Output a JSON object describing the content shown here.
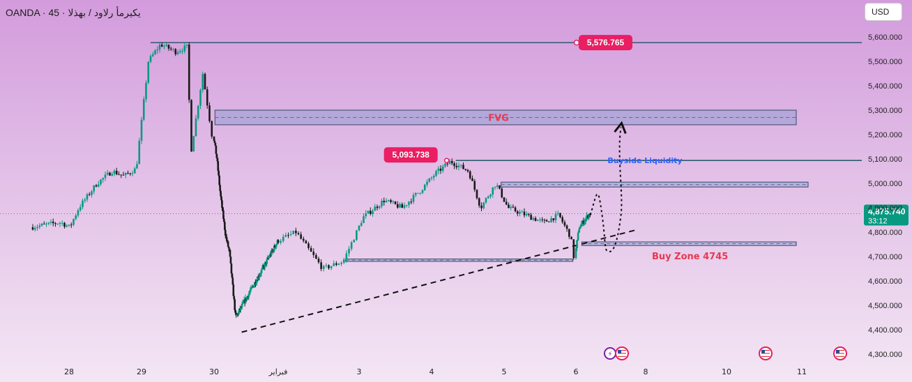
{
  "symbol_title": "OANDA · 45 · يكيرمأ رلاود / بهذلا",
  "currency": "USD",
  "chart_data": {
    "type": "candlestick",
    "timeframe_minutes": 45,
    "y_ticks": [
      4300000,
      4400000,
      4500000,
      4600000,
      4700000,
      4800000,
      4900000,
      5000000,
      5100000,
      5200000,
      5300000,
      5400000,
      5500000,
      5600000
    ],
    "y_tick_labels": [
      "4,300.000",
      "4,400.000",
      "4,500.000",
      "4,600.000",
      "4,700.000",
      "4,800.000",
      "4,900.000",
      "5,000.000",
      "5,100.000",
      "5,200.000",
      "5,300.000",
      "5,400.000",
      "5,500.000",
      "5,600.000"
    ],
    "x_tick_labels": [
      "28",
      "29",
      "30",
      "فبراير",
      "3",
      "4",
      "5",
      "6",
      "8",
      "10",
      "11"
    ],
    "colors": {
      "up": "#089981",
      "down": "#1a1a1a",
      "annotation": "#2d5b6e",
      "label_bg": "#e91e63",
      "accent_text": "#e53950",
      "liquidity_text": "#2962ff"
    },
    "price_path": [
      {
        "time": "Jan 27 12:00",
        "price": 4820
      },
      {
        "time": "Jan 27 22:00",
        "price": 4840
      },
      {
        "time": "Jan 28 01:00",
        "price": 4820
      },
      {
        "time": "Jan 28 04:00",
        "price": 4900
      },
      {
        "time": "Jan 28 10:00",
        "price": 5000
      },
      {
        "time": "Jan 28 15:00",
        "price": 5050
      },
      {
        "time": "Jan 28 19:00",
        "price": 5030
      },
      {
        "time": "Jan 28 23:00",
        "price": 5060
      },
      {
        "time": "Jan 29 03:00",
        "price": 5500
      },
      {
        "time": "Jan 29 07:00",
        "price": 5570
      },
      {
        "time": "Jan 29 12:00",
        "price": 5540
      },
      {
        "time": "Jan 29 16:00",
        "price": 5560
      },
      {
        "time": "Jan 29 17:00",
        "price": 5120
      },
      {
        "time": "Jan 29 21:00",
        "price": 5450
      },
      {
        "time": "Jan 30 00:00",
        "price": 5200
      },
      {
        "time": "Jan 30 04:00",
        "price": 5100
      },
      {
        "time": "Jan 30 08:00",
        "price": 4950
      },
      {
        "time": "Jan 30 14:00",
        "price": 4780
      },
      {
        "time": "Jan 30 18:00",
        "price": 4720
      },
      {
        "time": "Jan 31 01:00",
        "price": 4450
      },
      {
        "time": "Feb 2 06:00",
        "price": 4800
      },
      {
        "time": "Feb 2 14:00",
        "price": 4650
      },
      {
        "time": "Feb 2 20:00",
        "price": 4680
      },
      {
        "time": "Feb 3 02:00",
        "price": 4860
      },
      {
        "time": "Feb 3 09:00",
        "price": 4930
      },
      {
        "time": "Feb 3 15:00",
        "price": 4900
      },
      {
        "time": "Feb 3 21:00",
        "price": 4970
      },
      {
        "time": "Feb 4 02:00",
        "price": 5040
      },
      {
        "time": "Feb 4 07:00",
        "price": 5090
      },
      {
        "time": "Feb 4 13:00",
        "price": 5050
      },
      {
        "time": "Feb 4 17:00",
        "price": 4900
      },
      {
        "time": "Feb 4 22:00",
        "price": 5000
      },
      {
        "time": "Feb 5 02:00",
        "price": 4900
      },
      {
        "time": "Feb 5 08:00",
        "price": 4870
      },
      {
        "time": "Feb 5 14:00",
        "price": 4840
      },
      {
        "time": "Feb 5 19:00",
        "price": 4870
      },
      {
        "time": "Feb 5 23:00",
        "price": 4780
      },
      {
        "time": "Feb 6 00:00",
        "price": 4700
      },
      {
        "time": "Feb 6 03:00",
        "price": 4820
      },
      {
        "time": "Feb 6 10:00",
        "price": 4875.74
      }
    ],
    "last_price": "4,875.740",
    "countdown": "33:12",
    "levels": [
      {
        "name": "high",
        "price": 5576.765,
        "label": "5,576.765"
      },
      {
        "name": "buyside-liquidity",
        "price": 5093.738,
        "label": "5,093.738",
        "text": "Buyside Liquidity"
      }
    ],
    "zones": [
      {
        "name": "FVG",
        "label": "FVG",
        "top": 5300,
        "bottom": 5240
      },
      {
        "name": "supply",
        "label": "",
        "top": 5005,
        "bottom": 4985
      },
      {
        "name": "buy-zone",
        "label": "Buy Zone 4745",
        "top": 4760,
        "bottom": 4745
      },
      {
        "name": "demand-left",
        "label": "",
        "top": 4690,
        "bottom": 4680
      }
    ],
    "trendline": [
      {
        "time": "Jan 31 07:00",
        "price": 4390
      },
      {
        "time": "Feb 7 18:00",
        "price": 4810
      }
    ],
    "projection": [
      {
        "time": "Feb 6 10:00",
        "price": 4870
      },
      {
        "time": "Feb 6 14:00",
        "price": 4960
      },
      {
        "time": "Feb 6 18:00",
        "price": 4870
      },
      {
        "time": "Feb 6 23:00",
        "price": 4720
      },
      {
        "time": "Feb 7 05:00",
        "price": 4780
      },
      {
        "time": "Feb 7 07:00",
        "price": 5230
      }
    ]
  }
}
